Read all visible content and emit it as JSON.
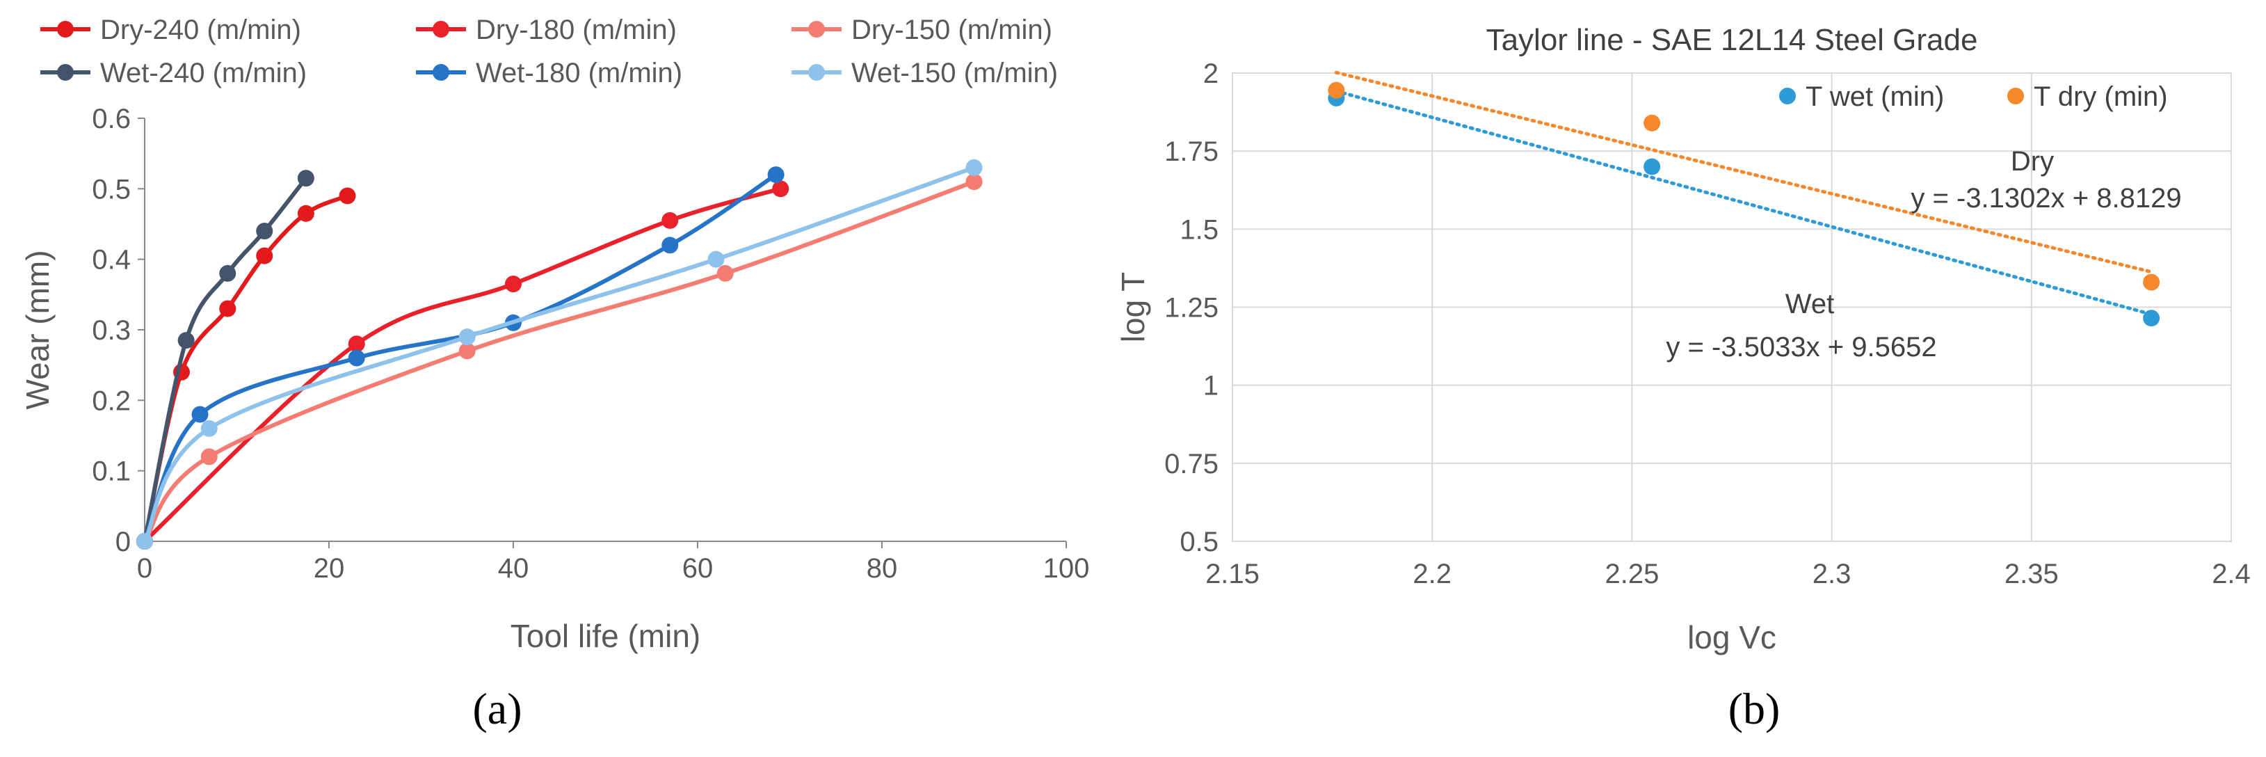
{
  "panel_labels": {
    "a": "(a)",
    "b": "(b)"
  },
  "chart_data": [
    {
      "type": "line",
      "title": "",
      "xlabel": "Tool life (min)",
      "ylabel": "Wear (mm)",
      "xlim": [
        0,
        100
      ],
      "ylim": [
        0,
        0.6
      ],
      "xticks": [
        "0",
        "20",
        "40",
        "60",
        "80",
        "100"
      ],
      "yticks": [
        "0",
        "0.1",
        "0.2",
        "0.3",
        "0.4",
        "0.5",
        "0.6"
      ],
      "grid": false,
      "legend_position": "top",
      "series": [
        {
          "name": "Dry-240 (m/min)",
          "color": "#e31a1c",
          "points": [
            [
              0,
              0
            ],
            [
              4,
              0.24
            ],
            [
              9,
              0.33
            ],
            [
              13,
              0.405
            ],
            [
              17.5,
              0.465
            ],
            [
              22,
              0.49
            ]
          ]
        },
        {
          "name": "Dry-180 (m/min)",
          "color": "#e8212b",
          "points": [
            [
              0,
              0
            ],
            [
              23,
              0.28
            ],
            [
              40,
              0.365
            ],
            [
              57,
              0.455
            ],
            [
              69,
              0.5
            ]
          ]
        },
        {
          "name": "Dry-150 (m/min)",
          "color": "#f47c72",
          "points": [
            [
              0,
              0
            ],
            [
              7,
              0.12
            ],
            [
              35,
              0.27
            ],
            [
              63,
              0.38
            ],
            [
              90,
              0.51
            ]
          ]
        },
        {
          "name": "Wet-240 (m/min)",
          "color": "#44546a",
          "points": [
            [
              0,
              0
            ],
            [
              4.5,
              0.285
            ],
            [
              9,
              0.38
            ],
            [
              13,
              0.44
            ],
            [
              17.5,
              0.515
            ]
          ]
        },
        {
          "name": "Wet-180 (m/min)",
          "color": "#2574c8",
          "points": [
            [
              0,
              0
            ],
            [
              6,
              0.18
            ],
            [
              23,
              0.26
            ],
            [
              40,
              0.31
            ],
            [
              57,
              0.42
            ],
            [
              68.5,
              0.52
            ]
          ]
        },
        {
          "name": "Wet-150 (m/min)",
          "color": "#8ec2ea",
          "points": [
            [
              0,
              0
            ],
            [
              7,
              0.16
            ],
            [
              35,
              0.29
            ],
            [
              62,
              0.4
            ],
            [
              90,
              0.53
            ]
          ]
        }
      ]
    },
    {
      "type": "scatter",
      "title": "Taylor line - SAE 12L14 Steel Grade",
      "xlabel": "log Vc",
      "ylabel": "log T",
      "xlim": [
        2.15,
        2.4
      ],
      "ylim": [
        0.5,
        2
      ],
      "xticks": [
        "2.15",
        "2.2",
        "2.25",
        "2.3",
        "2.35",
        "2.4"
      ],
      "yticks": [
        "0.5",
        "0.75",
        "1",
        "1.25",
        "1.5",
        "1.75",
        "2"
      ],
      "grid": true,
      "legend_position": "top-right",
      "series": [
        {
          "name": "T wet (min)",
          "color": "#2e9bd6",
          "points": [
            [
              2.176,
              1.92
            ],
            [
              2.255,
              1.7
            ],
            [
              2.38,
              1.215
            ]
          ]
        },
        {
          "name": "T dry (min)",
          "color": "#f5882d",
          "points": [
            [
              2.176,
              1.945
            ],
            [
              2.255,
              1.84
            ],
            [
              2.38,
              1.33
            ]
          ]
        }
      ],
      "trendlines": [
        {
          "series": "T wet (min)",
          "slope": -3.5033,
          "intercept": 9.5652,
          "label_name": "Wet",
          "equation": "y = -3.5033x + 9.5652",
          "color": "#2e9bd6",
          "x_range": [
            2.176,
            2.38
          ]
        },
        {
          "series": "T dry (min)",
          "slope": -3.1302,
          "intercept": 8.8129,
          "label_name": "Dry",
          "equation": "y = -3.1302x + 8.8129",
          "color": "#f5882d",
          "x_range": [
            2.176,
            2.38
          ]
        }
      ]
    }
  ]
}
